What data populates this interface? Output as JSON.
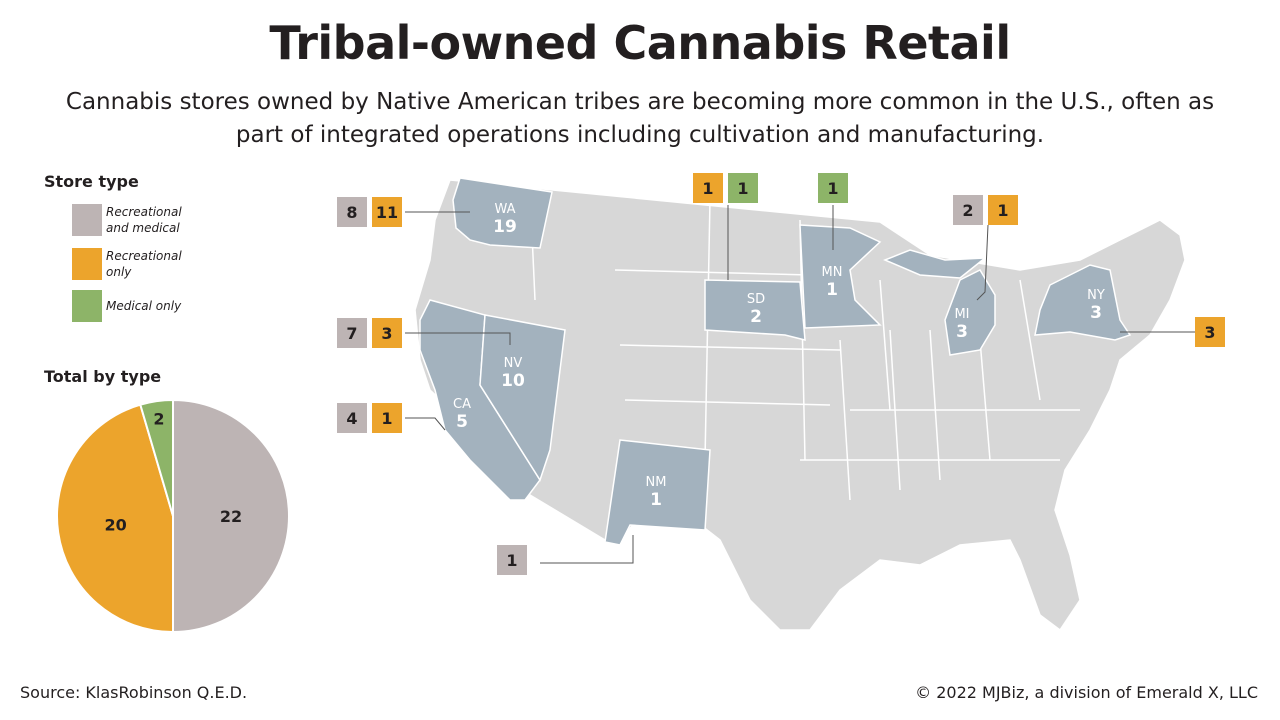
{
  "title": "Tribal-owned Cannabis Retail",
  "subtitle": "Cannabis stores owned by Native American tribes are becoming more common in the U.S., often as part of integrated operations including cultivation and manufacturing.",
  "legend": {
    "heading": "Store type",
    "items": [
      {
        "label": "Recreational and medical",
        "color": "#bdb4b4"
      },
      {
        "label": "Recreational only",
        "color": "#eca42c"
      },
      {
        "label": "Medical only",
        "color": "#8db468"
      }
    ]
  },
  "colors": {
    "state_highlight": "#a3b2be",
    "state_base": "#d7d7d7",
    "border": "#ffffff"
  },
  "chart_data": [
    {
      "type": "pie",
      "title": "Total by type",
      "slices": [
        {
          "label": "Recreational and medical",
          "value": 22,
          "color": "#bdb4b4"
        },
        {
          "label": "Recreational only",
          "value": 20,
          "color": "#eca42c"
        },
        {
          "label": "Medical only",
          "value": 2,
          "color": "#8db468"
        }
      ]
    },
    {
      "type": "map",
      "states": [
        {
          "abbr": "WA",
          "total": "19",
          "rec_med": "8",
          "rec_only": "11",
          "med_only": null
        },
        {
          "abbr": "CA",
          "total": "5",
          "rec_med": "4",
          "rec_only": "1",
          "med_only": null
        },
        {
          "abbr": "NV",
          "total": "10",
          "rec_med": "7",
          "rec_only": "3",
          "med_only": null
        },
        {
          "abbr": "NM",
          "total": "1",
          "rec_med": "1",
          "rec_only": null,
          "med_only": null
        },
        {
          "abbr": "SD",
          "total": "2",
          "rec_med": null,
          "rec_only": "1",
          "med_only": "1"
        },
        {
          "abbr": "MN",
          "total": "1",
          "rec_med": null,
          "rec_only": null,
          "med_only": "1"
        },
        {
          "abbr": "MI",
          "total": "3",
          "rec_med": "2",
          "rec_only": "1",
          "med_only": null
        },
        {
          "abbr": "NY",
          "total": "3",
          "rec_med": null,
          "rec_only": "3",
          "med_only": null
        }
      ]
    }
  ],
  "footer": {
    "source": "Source: KlasRobinson Q.E.D.",
    "credit": "© 2022 MJBiz, a division of Emerald X, LLC"
  }
}
